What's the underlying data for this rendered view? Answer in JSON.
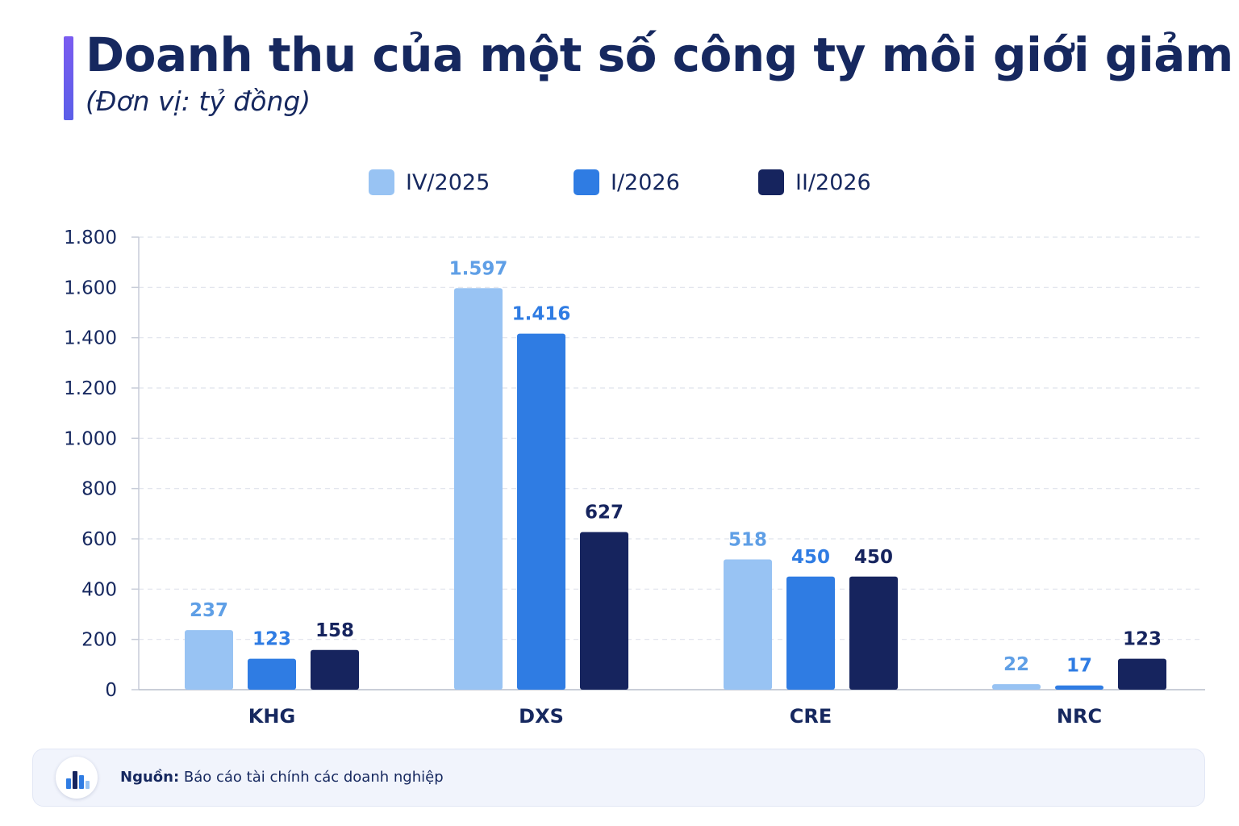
{
  "header": {
    "title": "Doanh thu của một số công ty môi giới giảm",
    "subtitle": "(Đơn vị: tỷ đồng)"
  },
  "chart_data": {
    "type": "bar",
    "categories": [
      "KHG",
      "DXS",
      "CRE",
      "NRC"
    ],
    "series": [
      {
        "name": "IV/2025",
        "values": [
          237,
          1597,
          518,
          22
        ],
        "labels": [
          "237",
          "1.597",
          "518",
          "22"
        ],
        "color": "#98c3f3",
        "label_color": "#5f9fe6"
      },
      {
        "name": "I/2026",
        "values": [
          123,
          1416,
          450,
          17
        ],
        "labels": [
          "123",
          "1.416",
          "450",
          "17"
        ],
        "color": "#2f7ce3",
        "label_color": "#2f7ce3"
      },
      {
        "name": "II/2026",
        "values": [
          158,
          627,
          450,
          123
        ],
        "labels": [
          "158",
          "627",
          "450",
          "123"
        ],
        "color": "#16245e",
        "label_color": "#16245e"
      }
    ],
    "ylim": [
      0,
      1800
    ],
    "yticks": [
      0,
      200,
      400,
      600,
      800,
      1000,
      1200,
      1400,
      1600,
      1800
    ],
    "ytick_labels": [
      "0",
      "200",
      "400",
      "600",
      "800",
      "1.000",
      "1.200",
      "1.400",
      "1.600",
      "1.800"
    ],
    "grid": true,
    "legend_position": "top-center"
  },
  "source": {
    "label": "Nguồn:",
    "text": "Báo cáo tài chính các doanh nghiệp",
    "icon": "bar-chart-icon"
  }
}
